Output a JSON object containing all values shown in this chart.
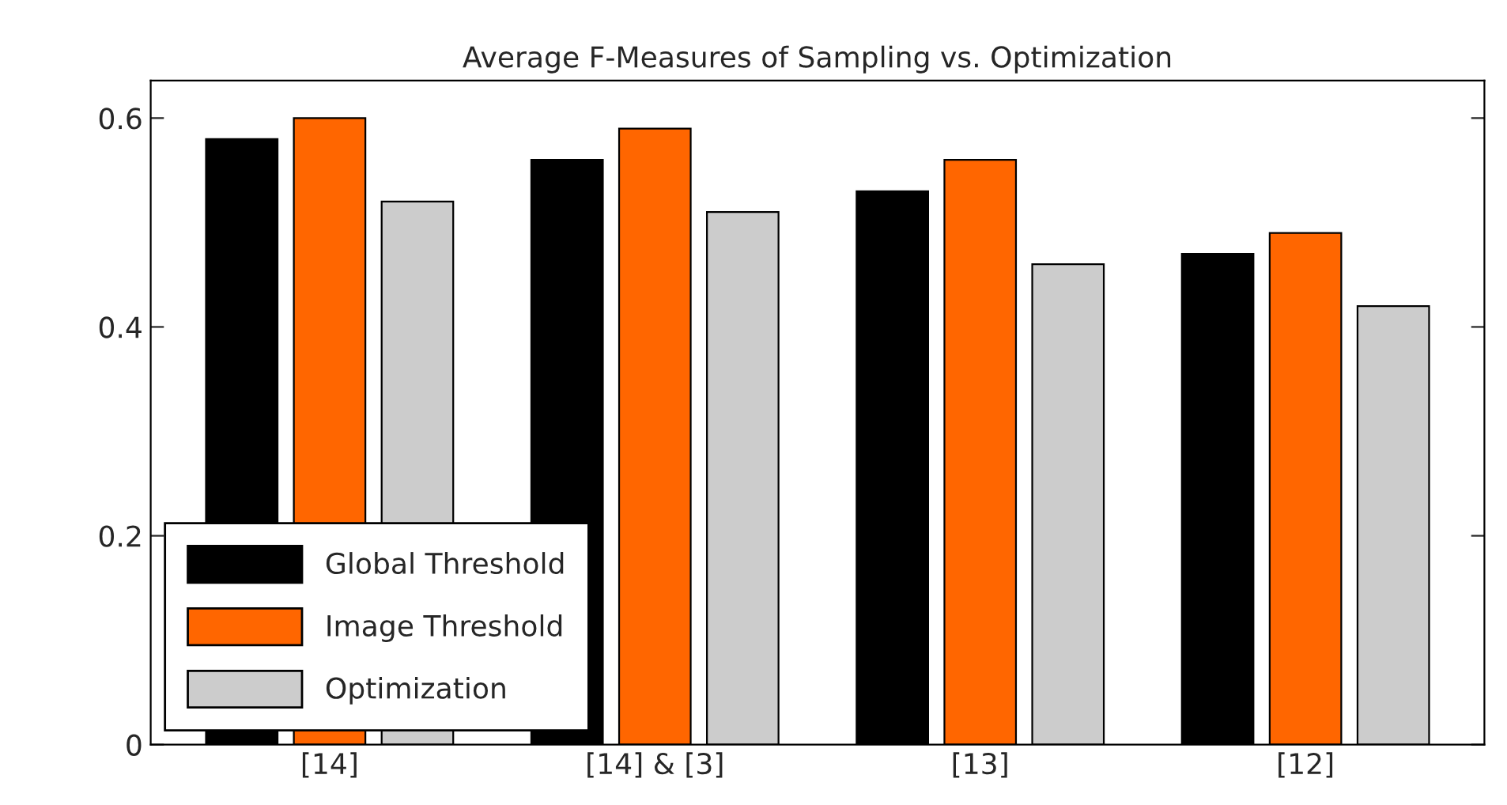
{
  "chart_data": {
    "type": "bar",
    "title": "Average F-Measures of Sampling vs. Optimization",
    "categories": [
      "[14]",
      "[14] & [3]",
      "[13]",
      "[12]"
    ],
    "series": [
      {
        "name": "Global Threshold",
        "color": "#000000",
        "values": [
          0.58,
          0.56,
          0.53,
          0.47
        ]
      },
      {
        "name": "Image Threshold",
        "color": "#ff6600",
        "values": [
          0.6,
          0.59,
          0.56,
          0.49
        ]
      },
      {
        "name": "Optimization",
        "color": "#cccccc",
        "values": [
          0.52,
          0.51,
          0.46,
          0.42
        ]
      }
    ],
    "ylim": [
      0,
      0.6
    ],
    "yticks": [
      0,
      0.2,
      0.4,
      0.6
    ],
    "grid": false,
    "legend": "bottom left"
  }
}
